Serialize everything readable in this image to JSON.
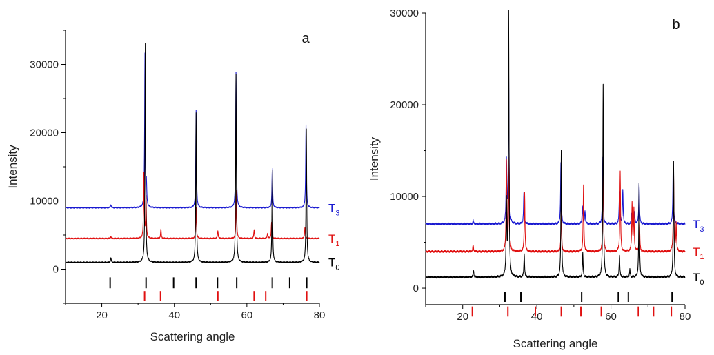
{
  "chart_data": [
    {
      "panel_label": "a",
      "type": "line",
      "xlabel": "Scattering angle",
      "ylabel": "Intensity",
      "xlim": [
        10,
        80
      ],
      "ylim": [
        -5000,
        35000
      ],
      "xticks": [
        20,
        40,
        60,
        80
      ],
      "yticks": [
        0,
        10000,
        20000,
        30000
      ],
      "grid": false,
      "series": [
        {
          "name_main": "T",
          "name_sub": "3",
          "color": "#1a1ad0",
          "baseline": 9000,
          "peaks": [
            {
              "x": 22.5,
              "h": 500
            },
            {
              "x": 31.9,
              "h": 22500
            },
            {
              "x": 32.3,
              "h": 3000
            },
            {
              "x": 46.0,
              "h": 14300
            },
            {
              "x": 57.0,
              "h": 19800
            },
            {
              "x": 67.0,
              "h": 5700
            },
            {
              "x": 76.3,
              "h": 12200
            }
          ]
        },
        {
          "name_main": "T",
          "name_sub": "1",
          "color": "#e01010",
          "baseline": 4500,
          "peaks": [
            {
              "x": 22.5,
              "h": 300
            },
            {
              "x": 31.6,
              "h": 9500
            },
            {
              "x": 32.2,
              "h": 6000
            },
            {
              "x": 36.3,
              "h": 1400
            },
            {
              "x": 46.0,
              "h": 4500
            },
            {
              "x": 52.0,
              "h": 1200
            },
            {
              "x": 57.1,
              "h": 7000
            },
            {
              "x": 62.0,
              "h": 1300
            },
            {
              "x": 65.7,
              "h": 800
            },
            {
              "x": 66.8,
              "h": 2400
            },
            {
              "x": 76.0,
              "h": 1700
            }
          ]
        },
        {
          "name_main": "T",
          "name_sub": "0",
          "color": "#000000",
          "baseline": 1000,
          "peaks": [
            {
              "x": 22.5,
              "h": 700
            },
            {
              "x": 32.0,
              "h": 32000
            },
            {
              "x": 46.0,
              "h": 22000
            },
            {
              "x": 57.0,
              "h": 27500
            },
            {
              "x": 67.0,
              "h": 13500
            },
            {
              "x": 76.4,
              "h": 19500
            }
          ]
        }
      ],
      "reference_ticks": [
        {
          "color": "#000000",
          "y_from": -1200,
          "y_to": -2800,
          "x": [
            22.3,
            32.2,
            39.8,
            46.0,
            51.9,
            57.2,
            67.0,
            71.8,
            76.5
          ]
        },
        {
          "color": "#e01010",
          "y_from": -3200,
          "y_to": -4600,
          "x": [
            31.8,
            36.2,
            52.0,
            62.0,
            65.2,
            76.5
          ]
        }
      ]
    },
    {
      "panel_label": "b",
      "type": "line",
      "xlabel": "Scattering angle",
      "ylabel": "Intensity",
      "xlim": [
        10,
        80
      ],
      "ylim": [
        -1800,
        30000
      ],
      "xticks": [
        20,
        40,
        60,
        80
      ],
      "yticks": [
        0,
        10000,
        20000,
        30000
      ],
      "grid": false,
      "series": [
        {
          "name_main": "T",
          "name_sub": "3",
          "color": "#1a1ad0",
          "baseline": 7000,
          "peaks": [
            {
              "x": 22.8,
              "h": 400
            },
            {
              "x": 31.8,
              "h": 6800
            },
            {
              "x": 32.4,
              "h": 17500
            },
            {
              "x": 36.5,
              "h": 3300
            },
            {
              "x": 46.5,
              "h": 6700
            },
            {
              "x": 52.3,
              "h": 2000
            },
            {
              "x": 53.0,
              "h": 1500
            },
            {
              "x": 57.8,
              "h": 7300
            },
            {
              "x": 62.3,
              "h": 3500
            },
            {
              "x": 63.2,
              "h": 3800
            },
            {
              "x": 65.6,
              "h": 1200
            },
            {
              "x": 66.4,
              "h": 1200
            },
            {
              "x": 67.6,
              "h": 4500
            },
            {
              "x": 76.8,
              "h": 6700
            }
          ]
        },
        {
          "name_main": "T",
          "name_sub": "1",
          "color": "#e01010",
          "baseline": 4000,
          "peaks": [
            {
              "x": 22.8,
              "h": 700
            },
            {
              "x": 31.8,
              "h": 9800
            },
            {
              "x": 32.5,
              "h": 10000
            },
            {
              "x": 36.7,
              "h": 6500
            },
            {
              "x": 46.6,
              "h": 4400
            },
            {
              "x": 52.6,
              "h": 7200
            },
            {
              "x": 57.9,
              "h": 9700
            },
            {
              "x": 62.5,
              "h": 8800
            },
            {
              "x": 65.7,
              "h": 5300
            },
            {
              "x": 66.2,
              "h": 4600
            },
            {
              "x": 67.7,
              "h": 3300
            },
            {
              "x": 76.9,
              "h": 8800
            },
            {
              "x": 77.6,
              "h": 3000
            }
          ]
        },
        {
          "name_main": "T",
          "name_sub": "0",
          "color": "#000000",
          "baseline": 1200,
          "peaks": [
            {
              "x": 22.9,
              "h": 800
            },
            {
              "x": 31.8,
              "h": 8000
            },
            {
              "x": 32.4,
              "h": 28800
            },
            {
              "x": 36.6,
              "h": 2600
            },
            {
              "x": 46.6,
              "h": 13800
            },
            {
              "x": 52.4,
              "h": 2600
            },
            {
              "x": 57.9,
              "h": 21000
            },
            {
              "x": 62.3,
              "h": 2400
            },
            {
              "x": 65.1,
              "h": 800
            },
            {
              "x": 67.6,
              "h": 10300
            },
            {
              "x": 76.9,
              "h": 12600
            }
          ]
        }
      ],
      "reference_ticks": [
        {
          "color": "#000000",
          "y_from": -400,
          "y_to": -1500,
          "x": [
            31.4,
            35.7,
            52.1,
            62.0,
            64.7,
            76.5
          ]
        },
        {
          "color": "#e01010",
          "y_from": -2000,
          "y_to": -3100,
          "x": [
            22.6,
            32.2,
            39.6,
            46.6,
            51.9,
            57.4,
            67.4,
            71.5,
            76.3
          ]
        }
      ]
    }
  ]
}
